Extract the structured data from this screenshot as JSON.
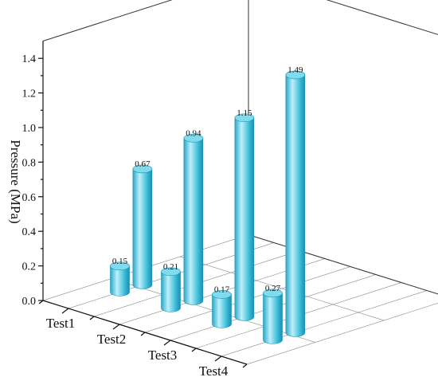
{
  "chart_data": {
    "type": "bar",
    "style": "3d-cylinder",
    "categories": [
      "Test1",
      "Test2",
      "Test3",
      "Test4"
    ],
    "series": [
      {
        "values": [
          0.15,
          0.21,
          0.17,
          0.27
        ]
      },
      {
        "values": [
          0.67,
          0.94,
          1.15,
          1.49
        ]
      }
    ],
    "value_labels": [
      [
        "0.15",
        "0.21",
        "0.17",
        "0.27"
      ],
      [
        "0.67",
        "0.94",
        "1.15",
        "1.49"
      ]
    ],
    "title": "",
    "xlabel": "",
    "ylabel": "Pressure (MPa)",
    "ylim": [
      0,
      1.5
    ],
    "yticks": [
      "0.0",
      "0.2",
      "0.4",
      "0.6",
      "0.8",
      "1.0",
      "1.2",
      "1.4"
    ],
    "grid": true,
    "colors": {
      "bar": "#3bbcd8",
      "bar_light": "#bdf0fa",
      "bar_dark": "#1a8fae",
      "top": "#7fdcee"
    }
  }
}
